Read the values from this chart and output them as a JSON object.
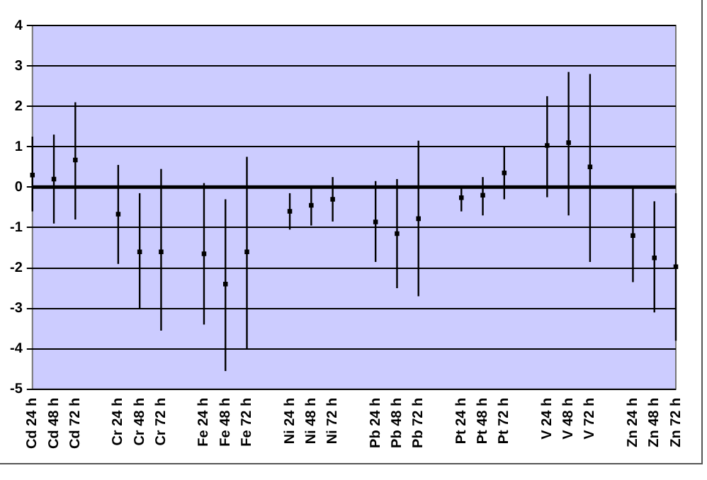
{
  "chart_data": {
    "type": "scatter",
    "categories": [
      "Cd 24 h",
      "Cd 48 h",
      "Cd 72 h",
      null,
      "Cr 24 h",
      "Cr 48 h",
      "Cr 72 h",
      null,
      "Fe 24 h",
      "Fe 48 h",
      "Fe 72 h",
      null,
      "Ni 24 h",
      "Ni 48 h",
      "Ni 72 h",
      null,
      "Pb 24 h",
      "Pb 48 h",
      "Pb 72 h",
      null,
      "Pt 24 h",
      "Pt 48 h",
      "Pt 72 h",
      null,
      "V 24 h",
      "V 48 h",
      "V 72 h",
      null,
      "Zn 24 h",
      "Zn 48 h",
      "Zn 72 h"
    ],
    "values": [
      0.3,
      0.2,
      0.67,
      null,
      -0.67,
      -1.6,
      -1.6,
      null,
      -1.65,
      -2.4,
      -1.6,
      null,
      -0.6,
      -0.45,
      -0.3,
      null,
      -0.86,
      -1.15,
      -0.78,
      null,
      -0.26,
      -0.2,
      0.35,
      null,
      1.03,
      1.1,
      0.5,
      null,
      -1.2,
      -1.75,
      -1.97
    ],
    "errors": [
      [
        -0.6,
        1.25
      ],
      [
        -0.9,
        1.3
      ],
      [
        -0.8,
        2.1
      ],
      null,
      [
        -1.9,
        0.55
      ],
      [
        -3.0,
        -0.15
      ],
      [
        -3.55,
        0.45
      ],
      null,
      [
        -3.4,
        0.1
      ],
      [
        -4.55,
        -0.3
      ],
      [
        -4.0,
        0.75
      ],
      null,
      [
        -1.05,
        -0.15
      ],
      [
        -0.95,
        0.0
      ],
      [
        -0.85,
        0.25
      ],
      null,
      [
        -1.85,
        0.15
      ],
      [
        -2.5,
        0.2
      ],
      [
        -2.7,
        1.15
      ],
      null,
      [
        -0.6,
        0.0
      ],
      [
        -0.7,
        0.25
      ],
      [
        -0.3,
        1.0
      ],
      null,
      [
        -0.25,
        2.25
      ],
      [
        -0.7,
        2.85
      ],
      [
        -1.85,
        2.8
      ],
      null,
      [
        -2.35,
        0.0
      ],
      [
        -3.1,
        -0.35
      ],
      [
        -3.8,
        -0.15
      ]
    ],
    "color": "#000000",
    "ylim": [
      -5,
      4
    ],
    "yticks": [
      -5,
      -4,
      -3,
      -2,
      -1,
      0,
      1,
      2,
      3,
      4
    ],
    "grid": "y",
    "marker": "square",
    "legend": false,
    "ref_lines": [
      {
        "axis": "y",
        "value": 0,
        "color": "#000000"
      }
    ]
  }
}
